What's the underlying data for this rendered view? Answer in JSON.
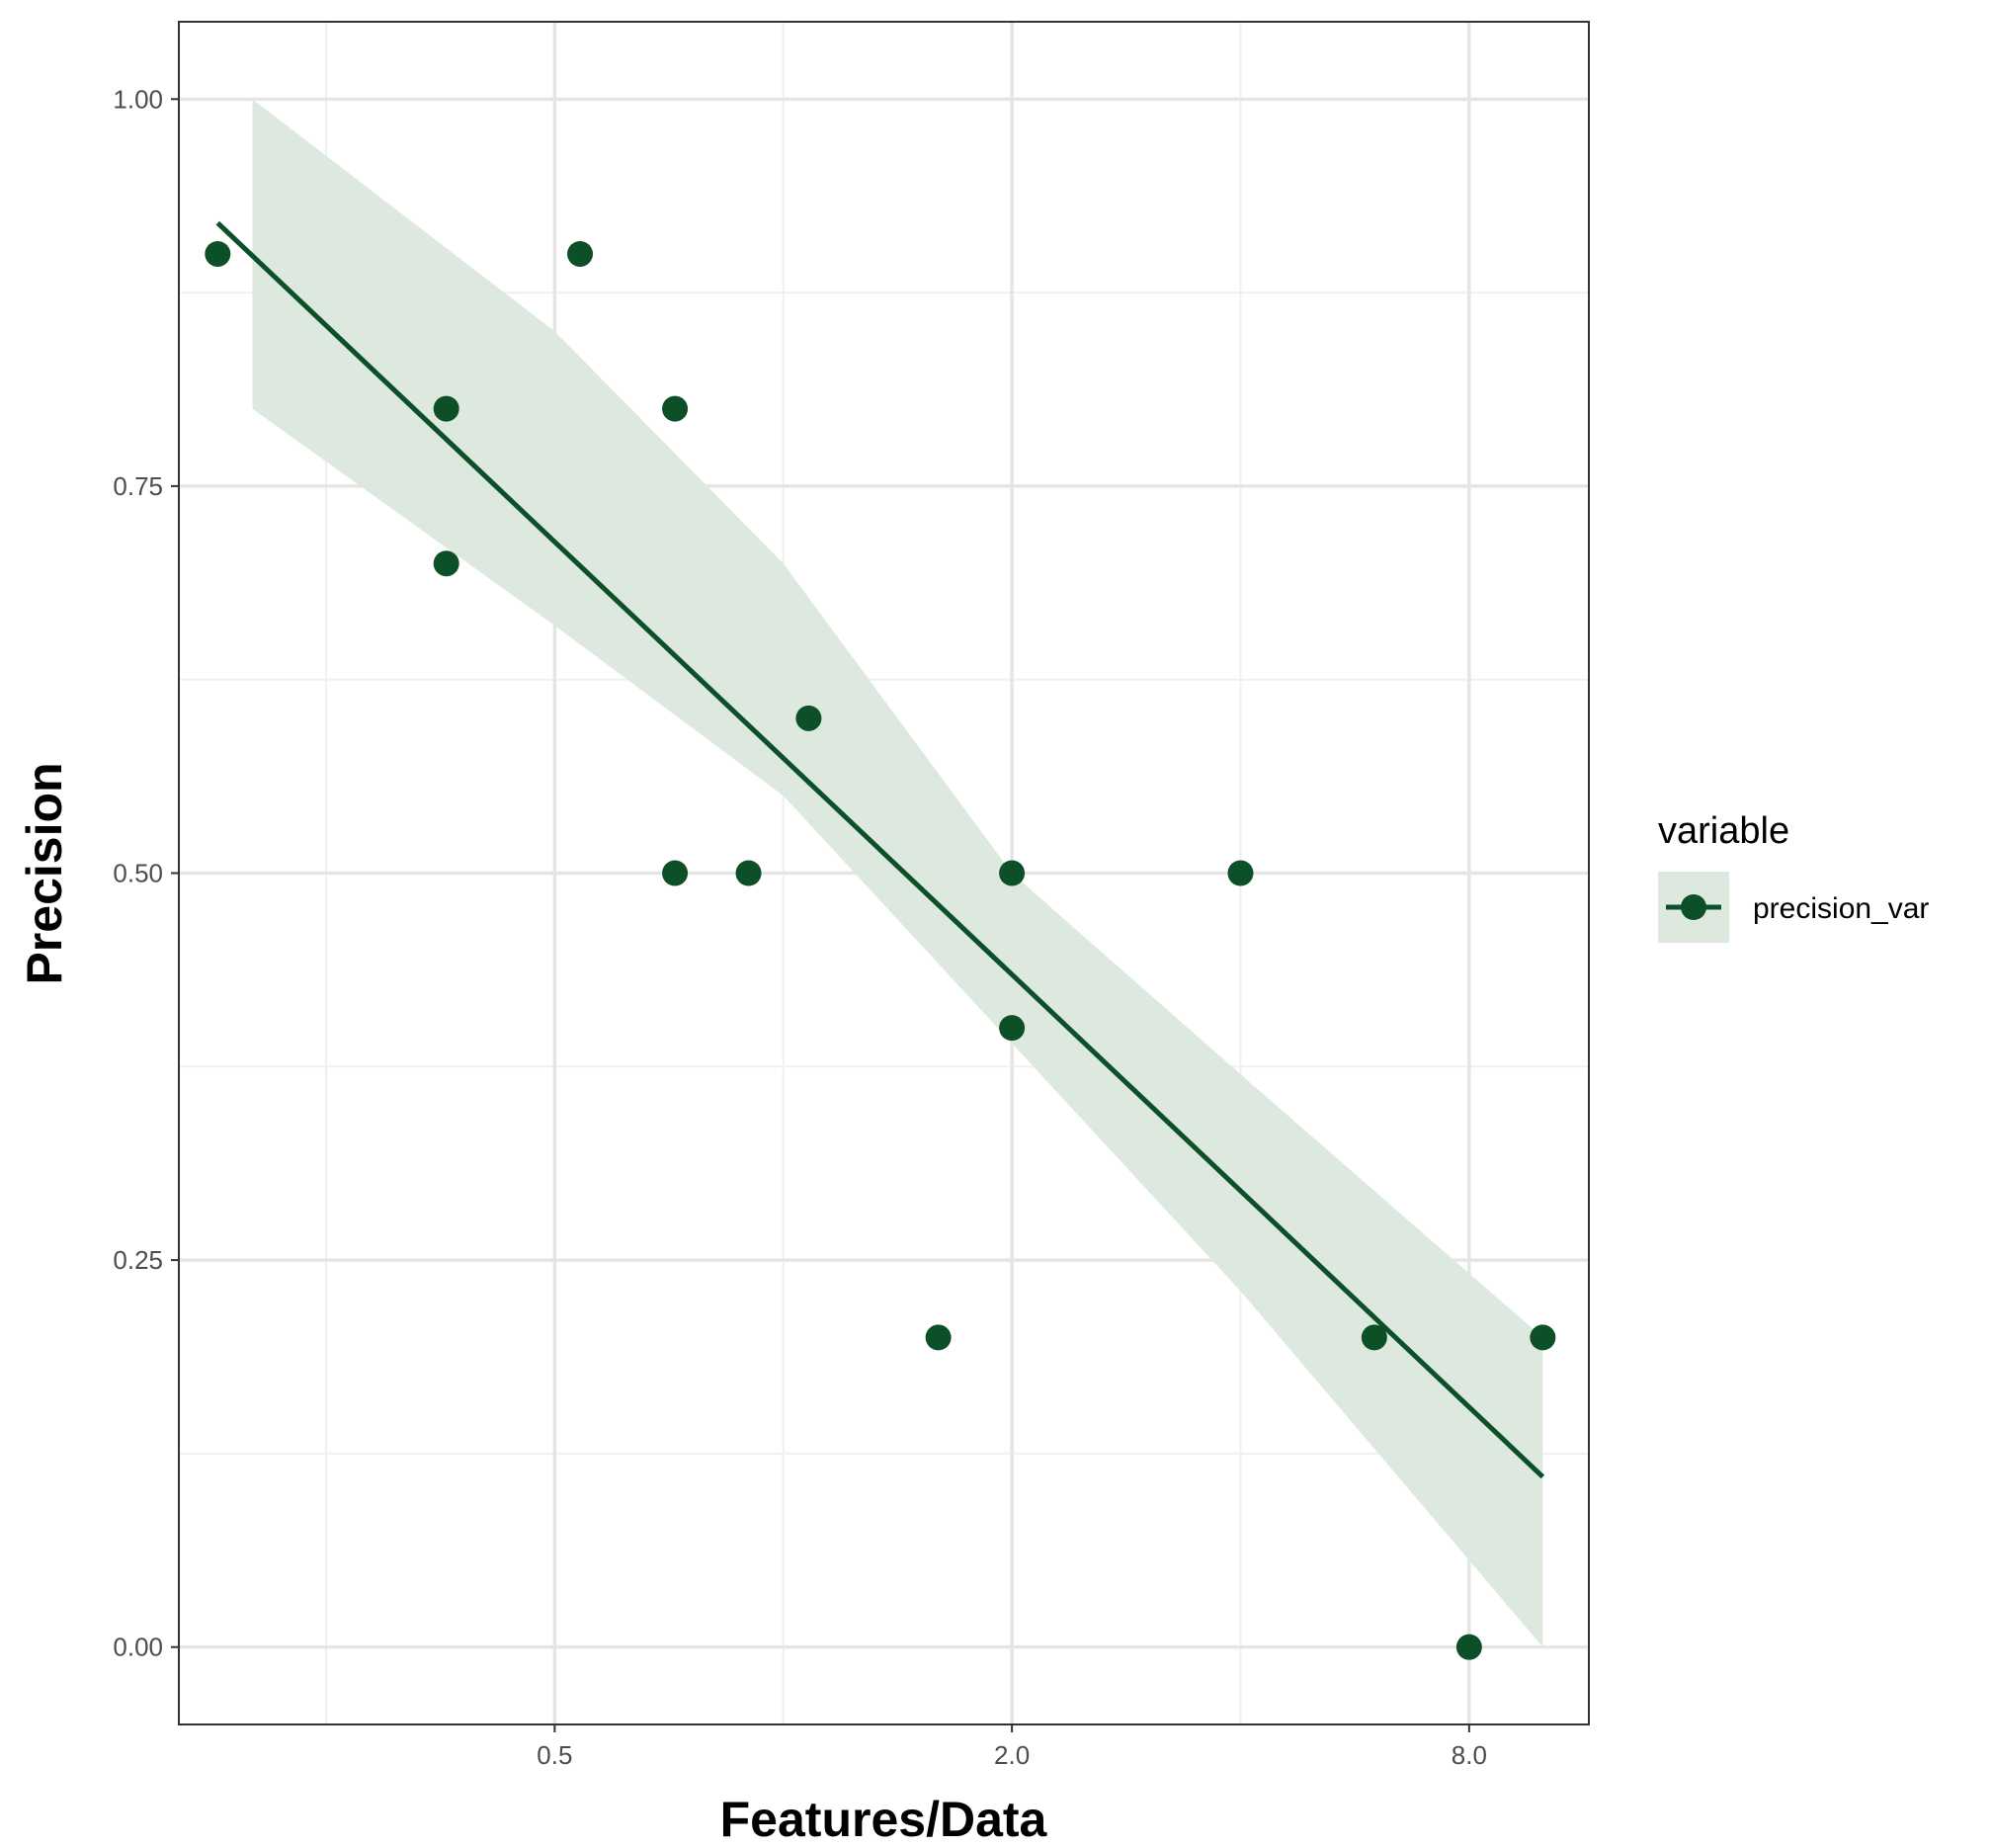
{
  "chart_data": {
    "type": "scatter",
    "title": "",
    "xlabel": "Features/Data",
    "ylabel": "Precision",
    "x_scale": "log2",
    "xlim": [
      0.16,
      11.5
    ],
    "ylim": [
      -0.05,
      1.05
    ],
    "x_ticks": [
      {
        "value": 0.5,
        "label": "0.5"
      },
      {
        "value": 2.0,
        "label": "2.0"
      },
      {
        "value": 8.0,
        "label": "8.0"
      }
    ],
    "x_minor_ticks": [
      0.25,
      1.0,
      4.0
    ],
    "y_ticks": [
      {
        "value": 0.0,
        "label": "0.00"
      },
      {
        "value": 0.25,
        "label": "0.25"
      },
      {
        "value": 0.5,
        "label": "0.50"
      },
      {
        "value": 0.75,
        "label": "0.75"
      },
      {
        "value": 1.0,
        "label": "1.00"
      }
    ],
    "y_minor_ticks": [
      0.125,
      0.375,
      0.625,
      0.875
    ],
    "grid": true,
    "legend": {
      "title": "variable",
      "position": "right",
      "entries": [
        "precision_var"
      ]
    },
    "colors": {
      "point": "#0d5028",
      "line": "#0d5028",
      "band": "#dde8df",
      "grid_major": "#e5e5e5",
      "grid_minor": "#f0f0f0",
      "border": "#333333"
    },
    "series": [
      {
        "name": "precision_var",
        "points": [
          {
            "x": 0.18,
            "y": 0.9
          },
          {
            "x": 0.36,
            "y": 0.8
          },
          {
            "x": 0.36,
            "y": 0.7
          },
          {
            "x": 0.54,
            "y": 0.9
          },
          {
            "x": 0.72,
            "y": 0.8
          },
          {
            "x": 0.72,
            "y": 0.5
          },
          {
            "x": 0.9,
            "y": 0.5
          },
          {
            "x": 1.08,
            "y": 0.6
          },
          {
            "x": 1.6,
            "y": 0.2
          },
          {
            "x": 2.0,
            "y": 0.5
          },
          {
            "x": 2.0,
            "y": 0.4
          },
          {
            "x": 4.0,
            "y": 0.5
          },
          {
            "x": 6.0,
            "y": 0.2
          },
          {
            "x": 8.0,
            "y": 0.0
          },
          {
            "x": 10.0,
            "y": 0.2
          }
        ]
      }
    ],
    "fit_line": [
      {
        "x": 0.18,
        "y": 0.92
      },
      {
        "x": 10.0,
        "y": 0.11
      }
    ],
    "confidence_band": [
      {
        "x": 0.2,
        "lower": 0.8,
        "upper": 1.0
      },
      {
        "x": 0.5,
        "lower": 0.66,
        "upper": 0.85
      },
      {
        "x": 1.0,
        "lower": 0.55,
        "upper": 0.7
      },
      {
        "x": 2.0,
        "lower": 0.39,
        "upper": 0.5
      },
      {
        "x": 4.0,
        "lower": 0.23,
        "upper": 0.37
      },
      {
        "x": 10.0,
        "lower": 0.0,
        "upper": 0.2
      }
    ]
  }
}
